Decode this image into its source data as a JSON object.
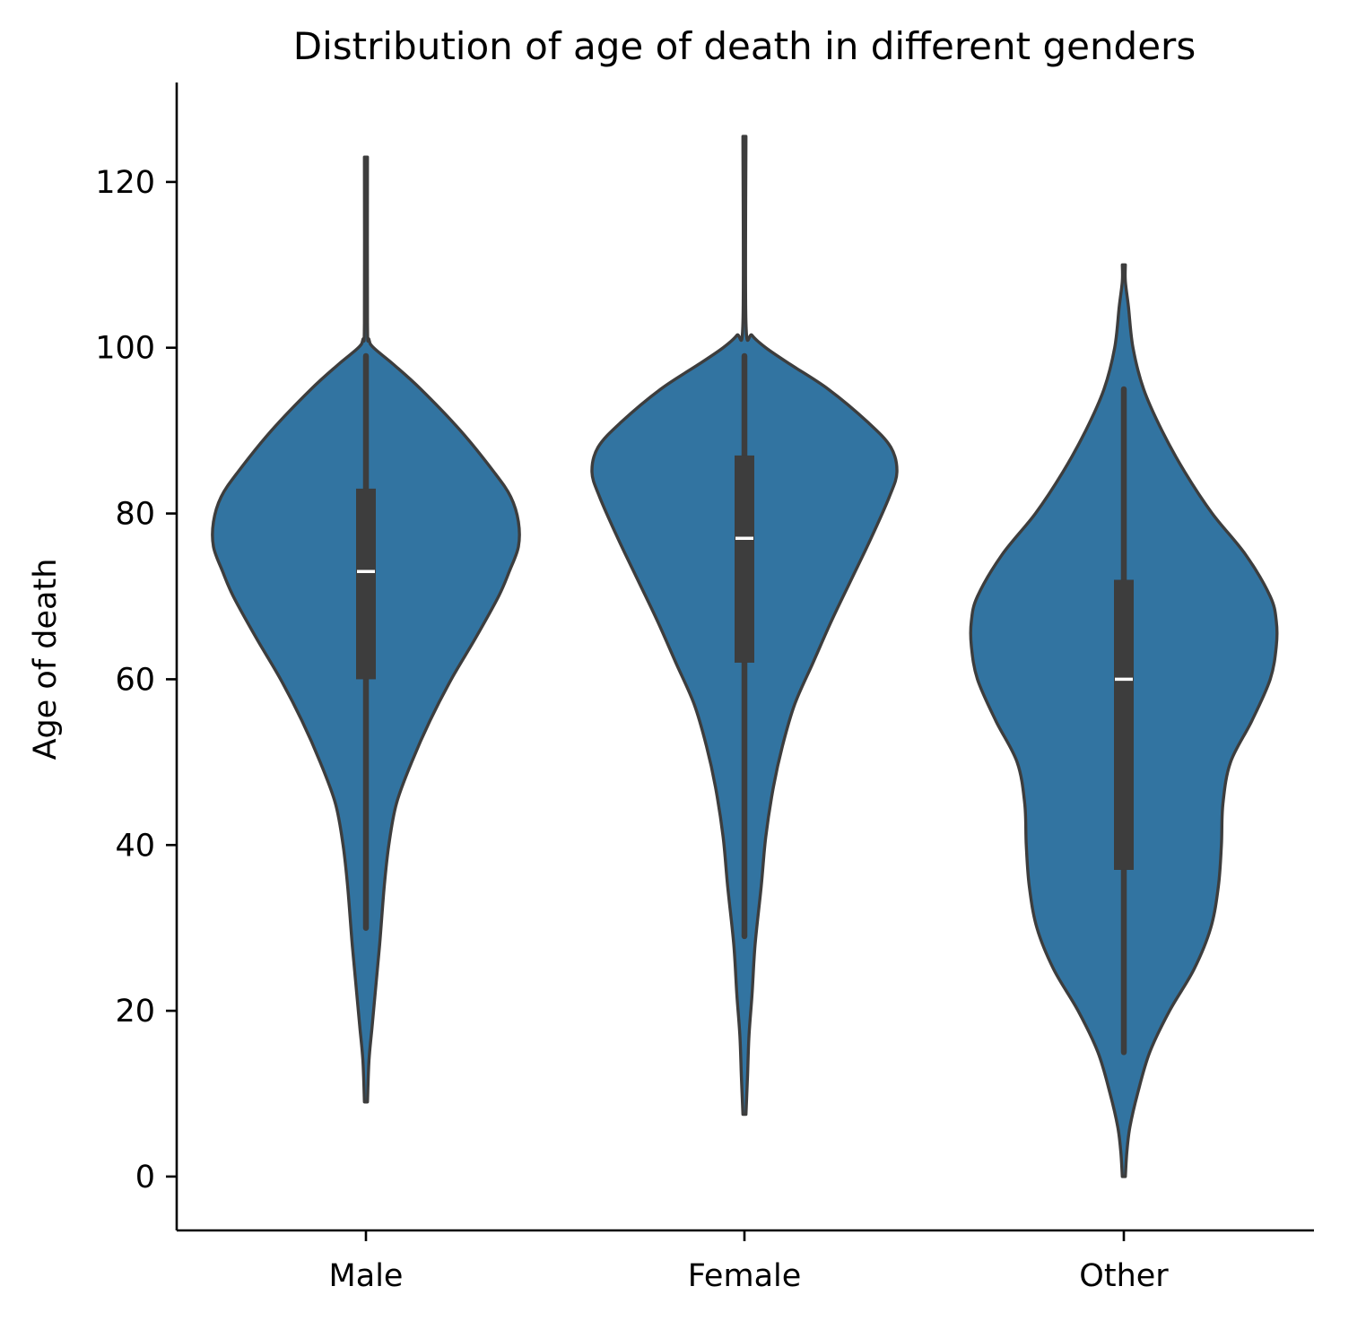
{
  "chart_data": {
    "type": "violin",
    "title": "Distribution of age of death in different genders",
    "xlabel": "",
    "ylabel": "Age of death",
    "categories": [
      "Male",
      "Female",
      "Other"
    ],
    "y_ticks": [
      0,
      20,
      40,
      60,
      80,
      100,
      120
    ],
    "y_tick_labels": [
      "0",
      "20",
      "40",
      "60",
      "80",
      "100",
      "120"
    ],
    "ylim": [
      -6.5,
      132
    ],
    "grid": false,
    "legend": "none",
    "colors": {
      "fill": "#3274a1",
      "outline": "#3d3d3d",
      "box": "#3d3d3d",
      "median": "#ffffff"
    },
    "violins": [
      {
        "category": "Male",
        "min": 9,
        "max": 123,
        "whisker_low": 30,
        "whisker_high": 99,
        "q1": 60,
        "median": 73,
        "q3": 83,
        "density": [
          [
            9,
            0.01
          ],
          [
            14,
            0.02
          ],
          [
            18,
            0.04
          ],
          [
            22,
            0.06
          ],
          [
            28,
            0.09
          ],
          [
            35,
            0.12
          ],
          [
            40,
            0.15
          ],
          [
            45,
            0.2
          ],
          [
            50,
            0.3
          ],
          [
            55,
            0.42
          ],
          [
            60,
            0.56
          ],
          [
            65,
            0.72
          ],
          [
            70,
            0.87
          ],
          [
            73,
            0.94
          ],
          [
            76,
            1.0
          ],
          [
            79,
            1.0
          ],
          [
            82,
            0.95
          ],
          [
            85,
            0.84
          ],
          [
            90,
            0.62
          ],
          [
            95,
            0.36
          ],
          [
            98,
            0.18
          ],
          [
            100,
            0.05
          ],
          [
            101,
            0.02
          ],
          [
            103,
            0.01
          ],
          [
            123,
            0.01
          ]
        ]
      },
      {
        "category": "Female",
        "min": 7.5,
        "max": 125.5,
        "whisker_low": 29,
        "whisker_high": 99,
        "q1": 62,
        "median": 77,
        "q3": 87,
        "density": [
          [
            7.5,
            0.01
          ],
          [
            12,
            0.02
          ],
          [
            17,
            0.03
          ],
          [
            22,
            0.05
          ],
          [
            28,
            0.07
          ],
          [
            35,
            0.11
          ],
          [
            41,
            0.14
          ],
          [
            47,
            0.19
          ],
          [
            52,
            0.25
          ],
          [
            57,
            0.33
          ],
          [
            62,
            0.45
          ],
          [
            67,
            0.57
          ],
          [
            72,
            0.7
          ],
          [
            77,
            0.83
          ],
          [
            82,
            0.95
          ],
          [
            85,
            1.0
          ],
          [
            88,
            0.96
          ],
          [
            91,
            0.81
          ],
          [
            95,
            0.55
          ],
          [
            98,
            0.3
          ],
          [
            100,
            0.14
          ],
          [
            101.5,
            0.05
          ],
          [
            103,
            0.01
          ],
          [
            125.5,
            0.01
          ]
        ]
      },
      {
        "category": "Other",
        "min": 0,
        "max": 110,
        "whisker_low": 15,
        "whisker_high": 95,
        "q1": 37,
        "median": 60,
        "q3": 72,
        "density": [
          [
            0,
            0.01
          ],
          [
            3,
            0.02
          ],
          [
            6,
            0.04
          ],
          [
            10,
            0.09
          ],
          [
            15,
            0.17
          ],
          [
            20,
            0.3
          ],
          [
            25,
            0.46
          ],
          [
            30,
            0.57
          ],
          [
            35,
            0.62
          ],
          [
            40,
            0.64
          ],
          [
            45,
            0.65
          ],
          [
            50,
            0.7
          ],
          [
            55,
            0.84
          ],
          [
            60,
            0.96
          ],
          [
            64,
            1.0
          ],
          [
            67,
            1.0
          ],
          [
            70,
            0.96
          ],
          [
            75,
            0.8
          ],
          [
            80,
            0.58
          ],
          [
            85,
            0.4
          ],
          [
            90,
            0.25
          ],
          [
            95,
            0.13
          ],
          [
            100,
            0.06
          ],
          [
            105,
            0.03
          ],
          [
            108,
            0.01
          ],
          [
            110,
            0.01
          ]
        ]
      }
    ]
  }
}
